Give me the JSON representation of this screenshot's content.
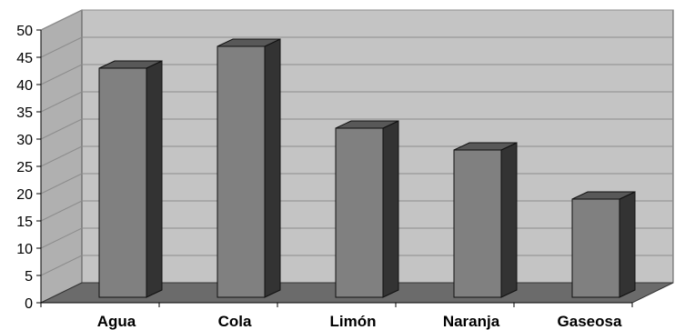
{
  "chart_data": {
    "type": "bar",
    "categories": [
      "Agua",
      "Cola",
      "Limón",
      "Naranja",
      "Gaseosa"
    ],
    "values": [
      42,
      46,
      31,
      27,
      18
    ],
    "ylim": [
      0,
      50
    ],
    "yticks": [
      0,
      5,
      10,
      15,
      20,
      25,
      30,
      35,
      40,
      45,
      50
    ],
    "grid": true,
    "legend": "none",
    "style": "3d-column"
  },
  "colors": {
    "wall": "#c4c4c4",
    "floor": "#6b6b6b",
    "side_wall": "#b0b0b0",
    "bar_front": "#808080",
    "bar_side": "#333333",
    "bar_top": "#585858",
    "grid": "#8c8c8c"
  }
}
